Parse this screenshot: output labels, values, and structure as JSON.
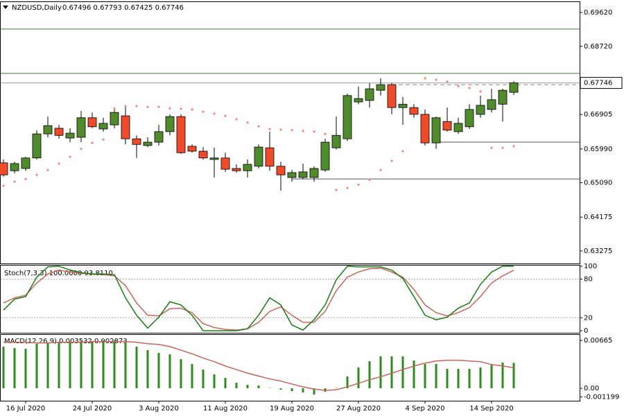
{
  "chart_data": [
    {
      "type": "candlestick",
      "title": "NZDUSD,Daily",
      "ohlc_label": "0.67496 0.67793 0.67425 0.67746",
      "categories": [
        null,
        null,
        "16 Jul 2020",
        null,
        null,
        null,
        null,
        null,
        "24 Jul 2020",
        null,
        null,
        null,
        null,
        null,
        "3 Aug 2020",
        null,
        null,
        null,
        null,
        null,
        "11 Aug 2020",
        null,
        null,
        null,
        null,
        null,
        "19 Aug 2020",
        null,
        null,
        null,
        null,
        null,
        "27 Aug 2020",
        null,
        null,
        null,
        null,
        null,
        "4 Sep 2020",
        null,
        null,
        null,
        null,
        null,
        "14 Sep 2020",
        null,
        null
      ],
      "open": [
        0.6562,
        0.6541,
        0.6547,
        0.6575,
        0.6639,
        0.6654,
        0.6628,
        0.663,
        0.6682,
        0.6652,
        0.6663,
        0.6687,
        0.6626,
        0.6608,
        0.6617,
        0.6645,
        0.6685,
        0.6606,
        0.6593,
        0.6571,
        0.6575,
        0.6547,
        0.6541,
        0.6553,
        0.6602,
        0.6553,
        0.6523,
        0.6523,
        0.6523,
        0.6543,
        0.6602,
        0.6626,
        0.6724,
        0.6728,
        0.6755,
        0.677,
        0.6709,
        0.6709,
        0.6691,
        0.6615,
        0.6672,
        0.6645,
        0.6658,
        0.6691,
        0.6704,
        0.6718,
        0.67496
      ],
      "high": [
        0.6571,
        0.6565,
        0.6578,
        0.6649,
        0.6685,
        0.6663,
        0.6654,
        0.67,
        0.6696,
        0.6682,
        0.6709,
        0.6715,
        0.6635,
        0.663,
        0.6663,
        0.6691,
        0.6691,
        0.6611,
        0.6604,
        0.6602,
        0.6589,
        0.6558,
        0.6571,
        0.6611,
        0.6645,
        0.6565,
        0.6543,
        0.656,
        0.6553,
        0.6626,
        0.6685,
        0.6746,
        0.6765,
        0.6774,
        0.6787,
        0.6774,
        0.6737,
        0.6718,
        0.6704,
        0.6685,
        0.6709,
        0.6682,
        0.6718,
        0.6741,
        0.6759,
        0.6759,
        0.67793
      ],
      "low": [
        0.6525,
        0.6534,
        0.6541,
        0.6571,
        0.663,
        0.6626,
        0.6617,
        0.6617,
        0.6654,
        0.6645,
        0.6654,
        0.6611,
        0.6575,
        0.6604,
        0.6608,
        0.6635,
        0.6586,
        0.6589,
        0.6571,
        0.6523,
        0.6538,
        0.6536,
        0.6523,
        0.6547,
        0.6541,
        0.6488,
        0.6512,
        0.6519,
        0.6512,
        0.6538,
        0.6597,
        0.662,
        0.6718,
        0.6709,
        0.6741,
        0.6691,
        0.6663,
        0.6682,
        0.6608,
        0.6599,
        0.6645,
        0.6639,
        0.6652,
        0.6682,
        0.6696,
        0.6672,
        0.67425
      ],
      "close": [
        0.653,
        0.656,
        0.6575,
        0.6639,
        0.6661,
        0.6635,
        0.6641,
        0.6682,
        0.6658,
        0.6667,
        0.6696,
        0.6626,
        0.6611,
        0.6617,
        0.6645,
        0.6685,
        0.6589,
        0.6593,
        0.6575,
        0.6575,
        0.6545,
        0.6541,
        0.6558,
        0.6604,
        0.6553,
        0.653,
        0.6536,
        0.6538,
        0.6547,
        0.6617,
        0.6635,
        0.6741,
        0.6733,
        0.6759,
        0.677,
        0.6709,
        0.6718,
        0.6691,
        0.6615,
        0.6682,
        0.6649,
        0.6667,
        0.6704,
        0.6715,
        0.673,
        0.6755,
        0.67746
      ],
      "up_color": "#4f8a2b",
      "down_color": "#ef4a2a",
      "sar_values": [
        0.6501,
        0.6512,
        0.6519,
        0.653,
        0.6543,
        0.656,
        0.6578,
        0.6599,
        0.6615,
        0.6624,
        0.6704,
        0.6713,
        0.6713,
        0.6711,
        0.6711,
        0.6707,
        0.6706,
        0.6704,
        0.6698,
        0.6693,
        0.6687,
        0.6678,
        0.6669,
        0.6659,
        0.6652,
        0.665,
        0.6649,
        0.6647,
        0.6645,
        0.6639,
        0.649,
        0.6495,
        0.6504,
        0.6517,
        0.6543,
        0.6567,
        0.6593,
        null,
        0.6787,
        0.6783,
        0.6778,
        0.6766,
        0.6761,
        0.6752,
        0.6602,
        0.6602,
        0.6606
      ],
      "sar_color": "#f08a6a",
      "lines": [
        {
          "value": 0.6918,
          "color": "#2e8b1e"
        },
        {
          "value": 0.68,
          "color": "#2e8b1e"
        },
        {
          "value": 0.6617,
          "color": "#555555",
          "from": 39
        },
        {
          "value": 0.6519,
          "color": "#555555",
          "from": 26
        },
        {
          "value": 0.677,
          "color": "#888888",
          "from": 35,
          "dash": true
        }
      ],
      "last_price": 0.67746,
      "ylim": [
        0.62943,
        0.69915
      ],
      "yticks": [
        {
          "value": 0.6962,
          "label": "0.69620"
        },
        {
          "value": 0.6872,
          "label": "0.68720"
        },
        0.66905,
        {
          "value": 0.6599,
          "label": "0.65990"
        },
        {
          "value": 0.6509,
          "label": "0.65090"
        },
        0.64175,
        0.63275
      ]
    },
    {
      "type": "line",
      "title": "Stoch(7,3,3) 100.0000 93.8110",
      "series": [
        {
          "color": "#1a7a12",
          "values": [
            32,
            49,
            53,
            83,
            99,
            100,
            94,
            90,
            88,
            88,
            87,
            51,
            24,
            4,
            21,
            45,
            40,
            24,
            0,
            0,
            0,
            0,
            3,
            24,
            51,
            40,
            9,
            1,
            17,
            40,
            79,
            100,
            99,
            99,
            99,
            94,
            81,
            53,
            24,
            17,
            21,
            35,
            43,
            72,
            91,
            100,
            100
          ]
        },
        {
          "color": "#c8645a",
          "values": [
            43,
            51,
            55,
            74,
            88,
            94,
            91,
            89,
            88,
            87,
            85,
            70,
            43,
            24,
            23,
            34,
            35,
            28,
            11,
            5,
            2,
            1,
            3,
            13,
            30,
            37,
            24,
            13,
            13,
            30,
            62,
            83,
            91,
            96,
            97,
            91,
            83,
            64,
            40,
            28,
            23,
            28,
            36,
            53,
            74,
            85,
            93.811
          ]
        }
      ],
      "levels": [
        80,
        20
      ],
      "ylim": [
        -3.2,
        102.1
      ],
      "yticks": [
        100,
        80,
        20,
        0
      ]
    },
    {
      "type": "bar",
      "title": "MACD(12,26,9) 0.003532 0.002873",
      "color": "#2e8b1e",
      "values": [
        0.00578,
        0.00559,
        0.00549,
        0.00617,
        0.00636,
        0.00646,
        0.00655,
        0.00655,
        0.00655,
        0.00665,
        0.00665,
        0.00636,
        0.00578,
        0.0053,
        0.00492,
        0.00472,
        0.00405,
        0.00337,
        0.0026,
        0.00193,
        0.00145,
        0.00077,
        0.00048,
        0.00039,
        5e-05,
        -0.00019,
        -0.00039,
        -0.00058,
        -0.00087,
        -0.00048,
        5e-05,
        0.00164,
        0.00289,
        0.00376,
        0.00443,
        0.00443,
        0.00443,
        0.00386,
        0.00337,
        0.00337,
        0.0027,
        0.0027,
        0.0027,
        0.00289,
        0.00337,
        0.00357,
        0.003532
      ],
      "signal": {
        "color": "#c8645a",
        "values": [
          0.0064,
          0.0064,
          0.0064,
          0.0063,
          0.0063,
          0.0064,
          0.0064,
          0.0064,
          0.0065,
          0.0065,
          0.0065,
          0.0065,
          0.0064,
          0.0062,
          0.0061,
          0.0058,
          0.0053,
          0.0048,
          0.0042,
          0.0037,
          0.0031,
          0.0026,
          0.0021,
          0.0017,
          0.0013,
          0.001,
          0.0006,
          0.0002,
          -0.0001,
          -0.0003,
          -0.0002,
          0.0002,
          0.0007,
          0.0012,
          0.0016,
          0.0021,
          0.0026,
          0.0031,
          0.0035,
          0.0038,
          0.0039,
          0.0039,
          0.0038,
          0.0037,
          0.0033,
          0.0031,
          0.002873
        ]
      },
      "ylim": [
        -0.00173,
        0.00752
      ],
      "yticks": [
        0.00665,
        {
          "value": 0,
          "label": "0.00"
        },
        -0.001199
      ]
    }
  ]
}
